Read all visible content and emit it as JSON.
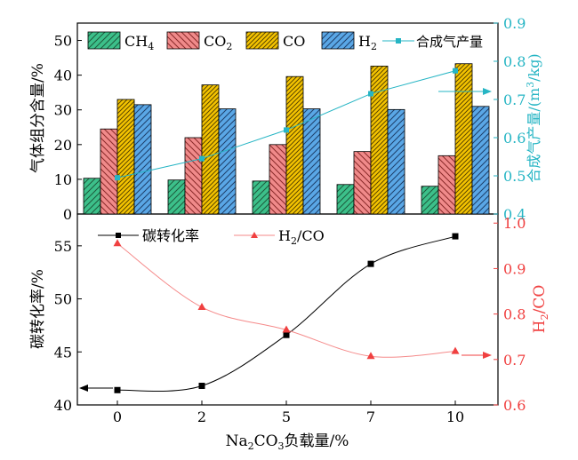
{
  "chart_data": [
    {
      "type": "bar",
      "categories": [
        "0",
        "2",
        "5",
        "7",
        "10"
      ],
      "ylabel": "气体组分含量/%",
      "ylim": [
        0,
        55
      ],
      "yticks": [
        0,
        10,
        20,
        30,
        40,
        50
      ],
      "series": [
        {
          "name": "CH4",
          "color": "#3cc08a",
          "pattern": "hatch-back",
          "values": [
            10.3,
            9.8,
            9.5,
            8.5,
            8.0
          ]
        },
        {
          "name": "CO2",
          "color": "#f08a8a",
          "pattern": "hatch-fwd",
          "values": [
            24.5,
            22.0,
            20.0,
            18.0,
            16.8
          ]
        },
        {
          "name": "CO",
          "color": "#f5c400",
          "pattern": "hatch-dense",
          "values": [
            33.0,
            37.2,
            39.6,
            42.6,
            43.3
          ]
        },
        {
          "name": "H2",
          "color": "#5aa7e6",
          "pattern": "hatch-back",
          "values": [
            31.5,
            30.3,
            30.3,
            30.1,
            31.0
          ]
        }
      ],
      "y2": {
        "label": "合成气产量/(m3/kg)",
        "ylim": [
          0.4,
          0.9
        ],
        "yticks": [
          0.4,
          0.5,
          0.6,
          0.7,
          0.8,
          0.9
        ],
        "color": "#26b5c4",
        "series": [
          {
            "name": "合成气产量",
            "values": [
              0.495,
              0.545,
              0.62,
              0.715,
              0.775
            ]
          }
        ]
      },
      "legend_position": "top"
    },
    {
      "type": "line",
      "x": [
        "0",
        "2",
        "5",
        "7",
        "10"
      ],
      "xlabel": "Na2CO3负载量/%",
      "ylabel": "碳转化率/%",
      "ylim": [
        40,
        58
      ],
      "yticks": [
        40,
        45,
        50,
        55
      ],
      "series": [
        {
          "name": "碳转化率",
          "color": "#000000",
          "marker": "square",
          "values": [
            41.4,
            41.8,
            46.6,
            53.3,
            55.9
          ]
        }
      ],
      "y2": {
        "label": "H2/CO",
        "ylim": [
          0.6,
          1.02
        ],
        "yticks": [
          0.6,
          0.7,
          0.8,
          0.9,
          1.0
        ],
        "color": "#f04040",
        "series": [
          {
            "name": "H2/CO",
            "marker": "triangle",
            "values": [
              0.955,
              0.815,
              0.765,
              0.707,
              0.718
            ]
          }
        ]
      },
      "legend_position": "top"
    }
  ],
  "labels": {
    "top_ylabel": "气体组分含量/%",
    "top_y2label_main": "合成气产量/(m",
    "top_y2label_sup": "3",
    "top_y2label_tail": "/kg)",
    "bottom_ylabel": "碳转化率/%",
    "bottom_y2label_main": "H",
    "bottom_y2label_sub": "2",
    "bottom_y2label_tail": "/CO",
    "xlabel_main": "Na",
    "xlabel_sub1": "2",
    "xlabel_mid": "CO",
    "xlabel_sub2": "3",
    "xlabel_tail": "负载量/%"
  },
  "legend_top": [
    {
      "key": "ch4",
      "main": "CH",
      "sub": "4"
    },
    {
      "key": "co2",
      "main": "CO",
      "sub": "2"
    },
    {
      "key": "co",
      "main": "CO",
      "sub": ""
    },
    {
      "key": "h2",
      "main": "H",
      "sub": "2"
    },
    {
      "key": "syngas",
      "main": "合成气产量",
      "sub": ""
    }
  ],
  "legend_bottom": [
    {
      "key": "conv",
      "main": "碳转化率",
      "sub": "",
      "tail": ""
    },
    {
      "key": "ratio",
      "main": "H",
      "sub": "2",
      "tail": "/CO"
    }
  ],
  "colors": {
    "axis": "#000000",
    "cyan": "#26b5c4",
    "red": "#f04040",
    "red_line": "#f58a8a"
  }
}
